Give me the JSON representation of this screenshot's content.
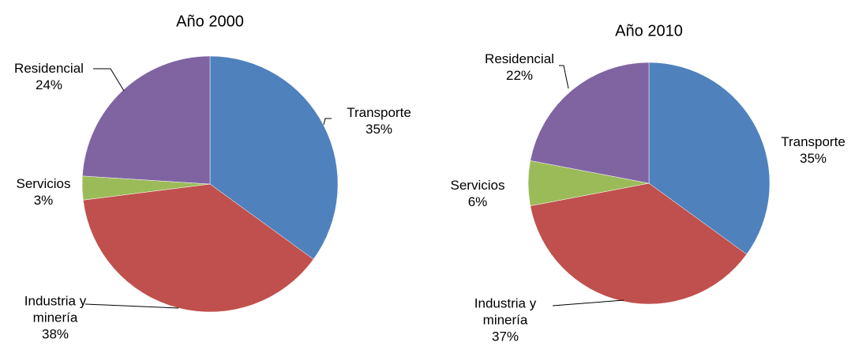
{
  "chart_data": [
    {
      "type": "pie",
      "title": "Año 2000",
      "categories": [
        "Transporte",
        "Industria y minería",
        "Servicios",
        "Residencial"
      ],
      "values": [
        35,
        38,
        3,
        24
      ],
      "value_labels": [
        "35%",
        "38%",
        "3%",
        "24%"
      ],
      "colors": [
        "#4f81bd",
        "#c0504d",
        "#9bbb59",
        "#8064a2"
      ]
    },
    {
      "type": "pie",
      "title": "Año 2010",
      "categories": [
        "Transporte",
        "Industria y minería",
        "Servicios",
        "Residencial"
      ],
      "values": [
        35,
        37,
        6,
        22
      ],
      "value_labels": [
        "35%",
        "37%",
        "6%",
        "22%"
      ],
      "colors": [
        "#4f81bd",
        "#c0504d",
        "#9bbb59",
        "#8064a2"
      ]
    }
  ]
}
